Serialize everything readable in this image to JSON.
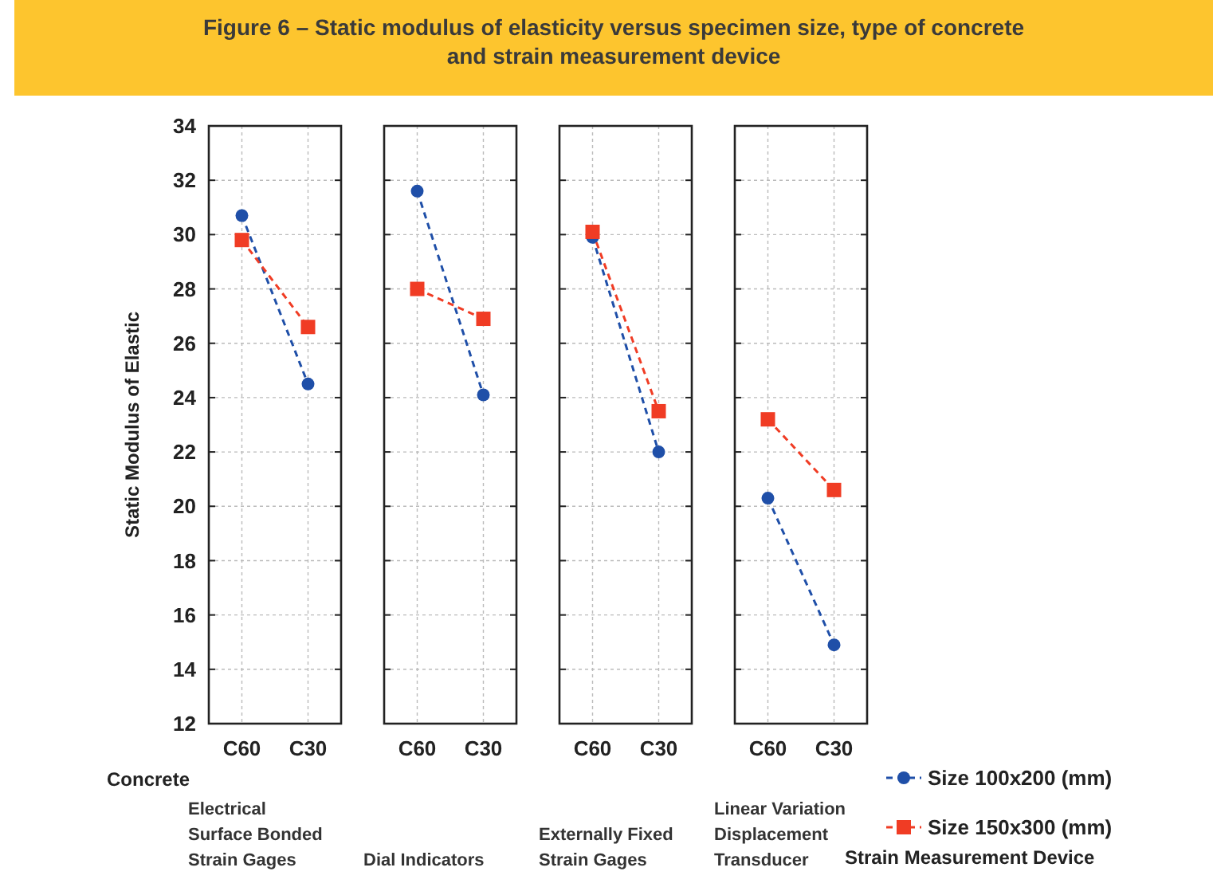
{
  "chart_data": [
    {
      "type": "line",
      "title": "Figure 6 – Static modulus of elasticity versus specimen size, type of concrete and strain measurement device",
      "ylabel": "Static Modulus of Elastic",
      "xlabel": "Electrical\nSurface Bonded\nStrain Gages",
      "annotations": [
        "Concrete"
      ],
      "categories": [
        "C60",
        "C30"
      ],
      "ylim": [
        12,
        34
      ],
      "yticks": [
        12,
        14,
        16,
        18,
        20,
        22,
        24,
        26,
        28,
        30,
        32,
        34
      ],
      "grid": true,
      "line_style": "dashed",
      "legend": false,
      "series": [
        {
          "color": "#1f4fa8",
          "marker": "circle",
          "values": [
            30.7,
            24.5
          ]
        },
        {
          "color": "#f03c24",
          "marker": "square",
          "values": [
            29.8,
            26.6
          ]
        }
      ]
    },
    {
      "type": "line",
      "xlabel": "Dial Indicators",
      "categories": [
        "C60",
        "C30"
      ],
      "ylim": [
        12,
        34
      ],
      "yticks": [
        12,
        14,
        16,
        18,
        20,
        22,
        24,
        26,
        28,
        30,
        32,
        34
      ],
      "grid": true,
      "line_style": "dashed",
      "tick_labels": "x",
      "legend": false,
      "series": [
        {
          "color": "#1f4fa8",
          "marker": "circle",
          "values": [
            31.6,
            24.1
          ]
        },
        {
          "color": "#f03c24",
          "marker": "square",
          "values": [
            28.0,
            26.9
          ]
        }
      ]
    },
    {
      "type": "line",
      "xlabel": "Externally Fixed\nStrain Gages",
      "categories": [
        "C60",
        "C30"
      ],
      "ylim": [
        12,
        34
      ],
      "yticks": [
        12,
        14,
        16,
        18,
        20,
        22,
        24,
        26,
        28,
        30,
        32,
        34
      ],
      "grid": true,
      "line_style": "dashed",
      "tick_labels": "x",
      "legend": false,
      "series": [
        {
          "color": "#1f4fa8",
          "marker": "circle",
          "values": [
            29.9,
            22.0
          ]
        },
        {
          "color": "#f03c24",
          "marker": "square",
          "values": [
            30.1,
            23.5
          ]
        }
      ]
    },
    {
      "type": "line",
      "xlabel": "Linear Variation\nDisplacement\nTransducer",
      "legend_title": "Strain Measurement Device",
      "categories": [
        "C60",
        "C30"
      ],
      "ylim": [
        12,
        34
      ],
      "yticks": [
        12,
        14,
        16,
        18,
        20,
        22,
        24,
        26,
        28,
        30,
        32,
        34
      ],
      "grid": true,
      "line_style": "dashed",
      "tick_labels": "x",
      "legend": "bottom right",
      "series": [
        {
          "name": "Size 100x200 (mm)",
          "color": "#1f4fa8",
          "marker": "circle",
          "values": [
            20.3,
            14.9
          ]
        },
        {
          "name": "Size 150x300 (mm)",
          "color": "#f03c24",
          "marker": "square",
          "values": [
            23.2,
            20.6
          ]
        }
      ]
    }
  ]
}
